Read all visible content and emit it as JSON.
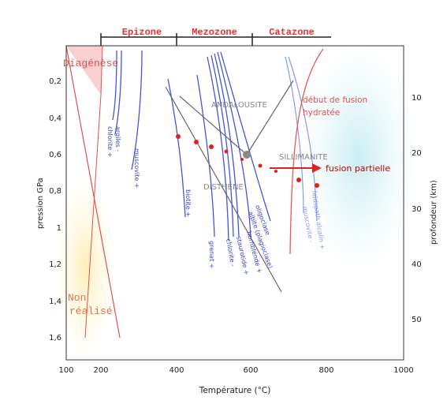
{
  "zones": [
    "Epizone",
    "Mezozone",
    "Catazone"
  ],
  "fields": {
    "diagenese": "Diagénèse",
    "non_realise_1": "Non",
    "non_realise_2": "réalisé",
    "andalousite": "ANDALOUSITE",
    "sillimanite": "SILLIMANITE",
    "disthene": "DISTHÈNE",
    "fusion_1": "début de fusion",
    "fusion_2": "hydratée",
    "fusion_partielle": "fusion partielle"
  },
  "curves": {
    "argiles": "argiles -",
    "chlorite_plus": "chlorite +",
    "muscovite_plus": "muscovite +",
    "biotite": "biotite +",
    "grenat": "grenat +",
    "chlorite_minus": "chlorite -",
    "staurotide": "staurotide +",
    "hornblende": "hornblende +",
    "albite": "albite (plagioclase)",
    "oligoclase": "oligoclase",
    "muscovite_minus": "muscovite -",
    "feldspath": "feldspath alcalin +"
  },
  "axes": {
    "xlabel": "Température (°C)",
    "ylabel_left": "pression GPa",
    "ylabel_right": "profondeur (km)",
    "xticks": [
      "100",
      "200",
      "400",
      "600",
      "800",
      "1000"
    ],
    "yticks_left": [
      "0,2",
      "0,4",
      "0,6",
      "0,8",
      "1",
      "1,2",
      "1,4",
      "1,6"
    ],
    "yticks_right": [
      "10",
      "20",
      "30",
      "40",
      "50"
    ]
  },
  "colors": {
    "zone_red": "#e53030",
    "curve_blue": "#4455dd",
    "curve_light_blue": "#8899ee",
    "fusion_red": "#ee5555",
    "aluminosilicate_gray": "#666666"
  }
}
